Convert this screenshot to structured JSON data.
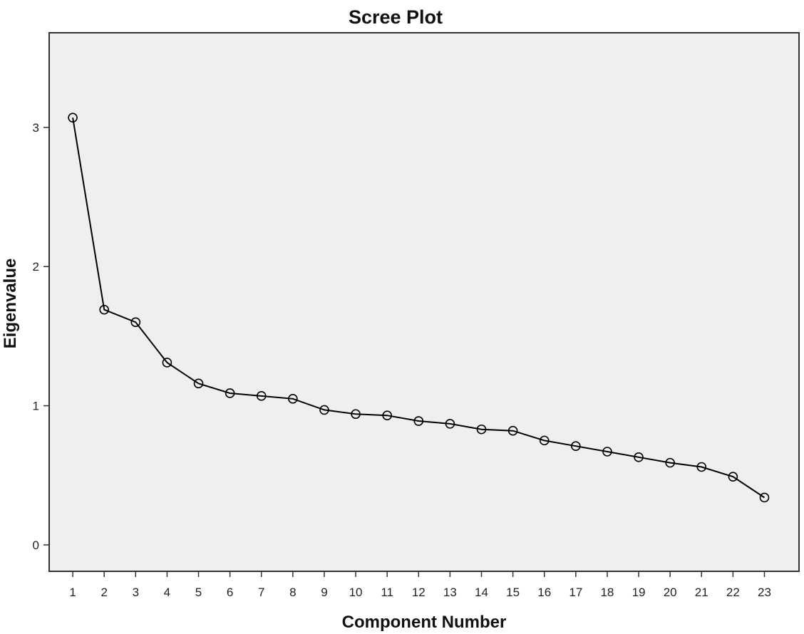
{
  "chart_data": {
    "type": "line",
    "title": "Scree Plot",
    "xlabel": "Component Number",
    "ylabel": "Eigenvalue",
    "x": [
      1,
      2,
      3,
      4,
      5,
      6,
      7,
      8,
      9,
      10,
      11,
      12,
      13,
      14,
      15,
      16,
      17,
      18,
      19,
      20,
      21,
      22,
      23
    ],
    "x_tick_labels": [
      "1",
      "2",
      "3",
      "4",
      "5",
      "6",
      "7",
      "8",
      "9",
      "10",
      "11",
      "12",
      "13",
      "14",
      "15",
      "16",
      "17",
      "18",
      "19",
      "20",
      "21",
      "22",
      "23"
    ],
    "series": [
      {
        "values": [
          3.07,
          1.69,
          1.6,
          1.31,
          1.16,
          1.09,
          1.07,
          1.05,
          0.97,
          0.94,
          0.93,
          0.89,
          0.87,
          0.83,
          0.82,
          0.75,
          0.71,
          0.67,
          0.63,
          0.59,
          0.56,
          0.49,
          0.34
        ],
        "marker": "open-circle"
      }
    ],
    "xlim": [
      0.25,
      24.1
    ],
    "ylim": [
      -0.19,
      3.68
    ],
    "y_ticks": [
      0,
      1,
      2,
      3
    ],
    "y_tick_labels": [
      "0",
      "1",
      "2",
      "3"
    ],
    "grid": false,
    "legend": "none",
    "colors": {
      "plot_background": "#efefef",
      "line": "#000000",
      "frame": "#333333"
    }
  }
}
